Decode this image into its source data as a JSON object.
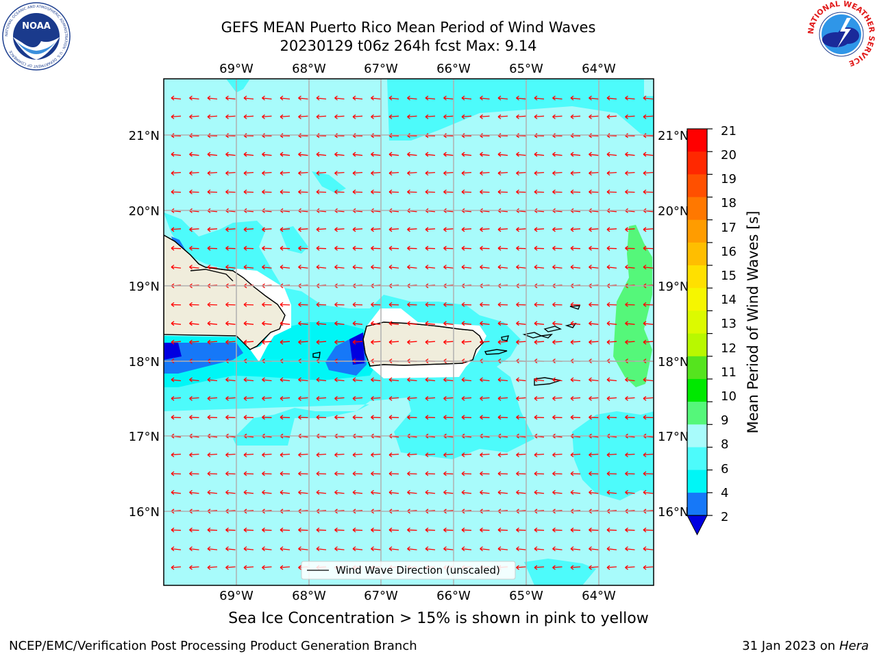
{
  "header": {
    "title_line1": "GEFS MEAN Puerto Rico Mean Period of Wind Waves",
    "title_line2": "20230129 t06z 264h fcst   Max: 9.14",
    "left_logo": {
      "text": "NOAA",
      "ring_text": "NATIONAL OCEANIC AND ATMOSPHERIC ADMINISTRATION · U.S. DEPARTMENT OF COMMERCE",
      "icon": "noaa-logo-icon"
    },
    "right_logo": {
      "ring_text": "NATIONAL WEATHER SERVICE",
      "icon": "nws-logo-icon"
    }
  },
  "map": {
    "lon_labels": [
      "69°W",
      "68°W",
      "67°W",
      "66°W",
      "65°W",
      "64°W"
    ],
    "lat_labels": [
      "21°N",
      "20°N",
      "19°N",
      "18°N",
      "17°N",
      "16°N"
    ],
    "legend_label": "Wind Wave Direction (unscaled)",
    "arrow_direction": "westward",
    "arrow_color": "#ff0000",
    "land_color": "#f0eddc",
    "ocean_bands": {
      "6-8": "#4dfbfb",
      "8-9": "#a8fbfb",
      "4-6": "#00f6f6",
      "2-4": "#1678f8",
      "below-2": "#0000e0",
      "9-10": "#55f77a"
    }
  },
  "colorbar": {
    "label": "Mean Period of Wind Waves [s]",
    "ticks": [
      "21",
      "20",
      "19",
      "18",
      "17",
      "16",
      "15",
      "14",
      "13",
      "12",
      "11",
      "10",
      "9",
      "8",
      "6",
      "4",
      "2"
    ],
    "colors_top_to_bottom": [
      "#ff0000",
      "#ff2800",
      "#ff5000",
      "#ff7800",
      "#ff9c00",
      "#ffbe00",
      "#ffe000",
      "#f6f600",
      "#dcfa00",
      "#b8f800",
      "#55e41e",
      "#00e800",
      "#55f77a",
      "#a8fbfb",
      "#4dfbfb",
      "#00f6f6",
      "#1678f8"
    ],
    "underflow_color": "#0000e0"
  },
  "footer": {
    "note": "Sea Ice Concentration > 15% is shown in pink to yellow",
    "credit_left": "NCEP/EMC/Verification Post Processing Product Generation Branch",
    "date_text": "31 Jan 2023 on",
    "machine": "Hera"
  }
}
